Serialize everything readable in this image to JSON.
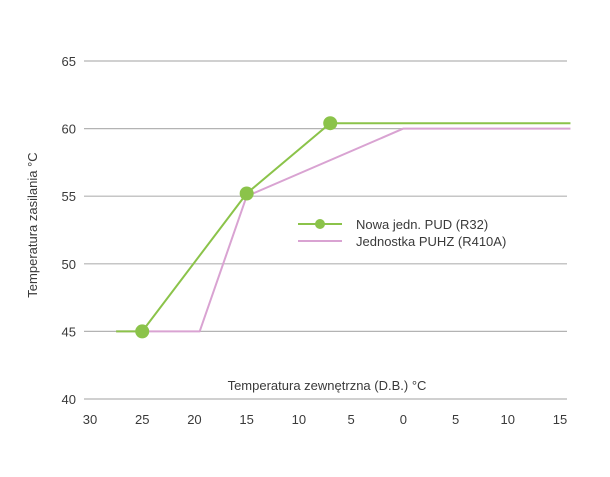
{
  "chart_data": {
    "type": "line",
    "title": "",
    "xlabel": "Temperatura zewnętrzna (D.B.) °C",
    "ylabel": "Temperatura zasilania °C",
    "xlim": [
      -30,
      16
    ],
    "ylim": [
      40,
      65
    ],
    "grid": "horizontal",
    "legend_position": "center-right",
    "x_ticks": [
      -30,
      -25,
      -20,
      -15,
      -10,
      -5,
      0,
      5,
      10,
      15
    ],
    "x_tick_labels": [
      "30",
      "25",
      "20",
      "15",
      "10",
      "5",
      "0",
      "5",
      "10",
      "15"
    ],
    "y_ticks": [
      40,
      45,
      50,
      55,
      60,
      65
    ],
    "y_tick_labels": [
      "40",
      "45",
      "50",
      "55",
      "60",
      "65"
    ],
    "series": [
      {
        "name": "Nowa jedn. PUD (R32)",
        "color": "#8bc34a",
        "markers": true,
        "points": [
          [
            -27.5,
            45
          ],
          [
            -25,
            45
          ],
          [
            -15,
            55.2
          ],
          [
            -7,
            60.4
          ],
          [
            16,
            60.4
          ]
        ],
        "marker_points": [
          [
            -25,
            45
          ],
          [
            -15,
            55.2
          ],
          [
            -7,
            60.4
          ]
        ]
      },
      {
        "name": "Jednostka PUHZ (R410A)",
        "color": "#d9a3d2",
        "markers": false,
        "points": [
          [
            -27.5,
            45
          ],
          [
            -19.5,
            45
          ],
          [
            -15,
            55
          ],
          [
            0,
            60
          ],
          [
            16,
            60
          ]
        ]
      }
    ]
  }
}
